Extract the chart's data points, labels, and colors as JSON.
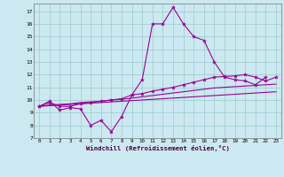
{
  "x": [
    0,
    1,
    2,
    3,
    4,
    5,
    6,
    7,
    8,
    9,
    10,
    11,
    12,
    13,
    14,
    15,
    16,
    17,
    18,
    19,
    20,
    21,
    22,
    23
  ],
  "line1_x": [
    0,
    1,
    2,
    3,
    4,
    5,
    6,
    7,
    8,
    9,
    10,
    11,
    12,
    13,
    14,
    15,
    16,
    17,
    18,
    19,
    20,
    21,
    22
  ],
  "line1_y": [
    9.5,
    9.9,
    9.2,
    9.4,
    9.3,
    8.0,
    8.4,
    7.5,
    8.7,
    10.4,
    11.6,
    16.0,
    16.0,
    17.3,
    16.0,
    15.0,
    14.7,
    13.0,
    11.8,
    11.6,
    11.5,
    11.2,
    11.8
  ],
  "line2_y": [
    9.5,
    9.8,
    9.5,
    9.5,
    9.7,
    9.8,
    9.9,
    10.0,
    10.1,
    10.4,
    10.5,
    10.7,
    10.85,
    11.0,
    11.2,
    11.4,
    11.6,
    11.8,
    11.85,
    11.9,
    12.0,
    11.8,
    11.5,
    11.8
  ],
  "line3_y": [
    9.5,
    9.6,
    9.65,
    9.7,
    9.8,
    9.85,
    9.9,
    10.0,
    10.05,
    10.15,
    10.25,
    10.35,
    10.45,
    10.55,
    10.65,
    10.75,
    10.85,
    10.95,
    11.0,
    11.05,
    11.1,
    11.15,
    11.2,
    11.25
  ],
  "line4_y": [
    9.5,
    9.55,
    9.6,
    9.65,
    9.7,
    9.75,
    9.8,
    9.85,
    9.9,
    9.95,
    10.0,
    10.05,
    10.1,
    10.15,
    10.2,
    10.25,
    10.3,
    10.35,
    10.4,
    10.45,
    10.5,
    10.55,
    10.6,
    10.65
  ],
  "color": "#990099",
  "bg_color": "#cce8f0",
  "grid_color": "#99cccc",
  "xlabel": "Windchill (Refroidissement éolien,°C)",
  "yticks": [
    7,
    8,
    9,
    10,
    11,
    12,
    13,
    14,
    15,
    16,
    17
  ],
  "xlim": [
    -0.5,
    23.5
  ],
  "ylim": [
    7.0,
    17.6
  ]
}
